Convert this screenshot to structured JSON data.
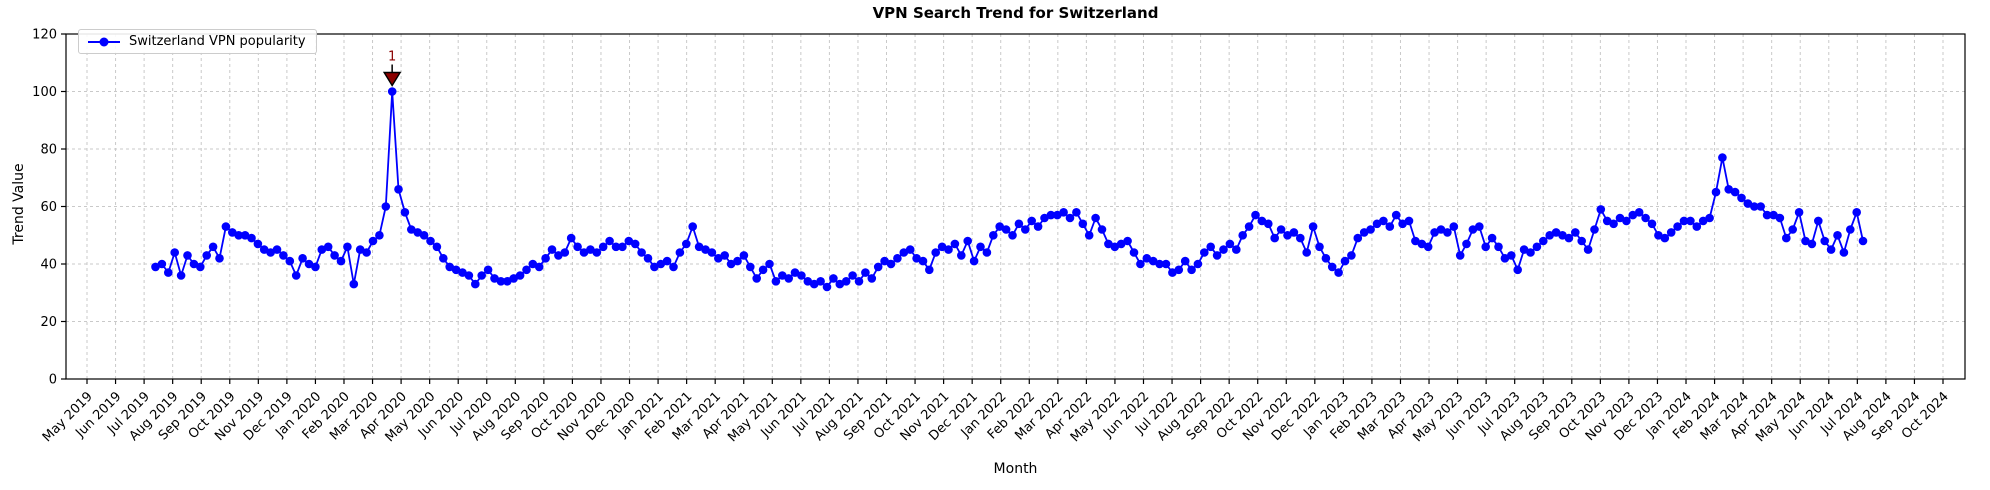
{
  "chart_data": {
    "type": "line",
    "title": "VPN Search Trend for Switzerland",
    "xlabel": "Month",
    "ylabel": "Trend Value",
    "ylim": [
      0,
      120
    ],
    "yticks": [
      0,
      20,
      40,
      60,
      80,
      100,
      120
    ],
    "grid": true,
    "legend_position": "upper left",
    "x_tick_labels": [
      "May 2019",
      "Jun 2019",
      "Jul 2019",
      "Aug 2019",
      "Sep 2019",
      "Oct 2019",
      "Nov 2019",
      "Dec 2019",
      "Jan 2020",
      "Feb 2020",
      "Mar 2020",
      "Apr 2020",
      "May 2020",
      "Jun 2020",
      "Jul 2020",
      "Aug 2020",
      "Sep 2020",
      "Oct 2020",
      "Nov 2020",
      "Dec 2020",
      "Jan 2021",
      "Feb 2021",
      "Mar 2021",
      "Apr 2021",
      "May 2021",
      "Jun 2021",
      "Jul 2021",
      "Aug 2021",
      "Sep 2021",
      "Oct 2021",
      "Nov 2021",
      "Dec 2021",
      "Jan 2022",
      "Feb 2022",
      "Mar 2022",
      "Apr 2022",
      "May 2022",
      "Jun 2022",
      "Jul 2022",
      "Aug 2022",
      "Sep 2022",
      "Oct 2022",
      "Nov 2022",
      "Dec 2022",
      "Jan 2023",
      "Feb 2023",
      "Mar 2023",
      "Apr 2023",
      "May 2023",
      "Jun 2023",
      "Jul 2023",
      "Aug 2023",
      "Sep 2023",
      "Oct 2023",
      "Nov 2023",
      "Dec 2023",
      "Jan 2024",
      "Feb 2024",
      "Mar 2024",
      "Apr 2024",
      "May 2024",
      "Jun 2024",
      "Jul 2024",
      "Aug 2024",
      "Sep 2024",
      "Oct 2024"
    ],
    "data_starts_at_month_index": 2.4,
    "data_ends_at_month_index": 62.2,
    "series": [
      {
        "name": "Switzerland VPN popularity",
        "color": "#0000ff",
        "marker": "circle",
        "cadence": "weekly",
        "values": [
          39,
          40,
          37,
          44,
          36,
          43,
          40,
          39,
          43,
          46,
          42,
          53,
          51,
          50,
          50,
          49,
          47,
          45,
          44,
          45,
          43,
          41,
          36,
          42,
          40,
          39,
          45,
          46,
          43,
          41,
          46,
          33,
          45,
          44,
          48,
          50,
          60,
          100,
          66,
          58,
          52,
          51,
          50,
          48,
          46,
          42,
          39,
          38,
          37,
          36,
          33,
          36,
          38,
          35,
          34,
          34,
          35,
          36,
          38,
          40,
          39,
          42,
          45,
          43,
          44,
          49,
          46,
          44,
          45,
          44,
          46,
          48,
          46,
          46,
          48,
          47,
          44,
          42,
          39,
          40,
          41,
          39,
          44,
          47,
          53,
          46,
          45,
          44,
          42,
          43,
          40,
          41,
          43,
          39,
          35,
          38,
          40,
          34,
          36,
          35,
          37,
          36,
          34,
          33,
          34,
          32,
          35,
          33,
          34,
          36,
          34,
          37,
          35,
          39,
          41,
          40,
          42,
          44,
          45,
          42,
          41,
          38,
          44,
          46,
          45,
          47,
          43,
          48,
          41,
          46,
          44,
          50,
          53,
          52,
          50,
          54,
          52,
          55,
          53,
          56,
          57,
          57,
          58,
          56,
          58,
          54,
          50,
          56,
          52,
          47,
          46,
          47,
          48,
          44,
          40,
          42,
          41,
          40,
          40,
          37,
          38,
          41,
          38,
          40,
          44,
          46,
          43,
          45,
          47,
          45,
          50,
          53,
          57,
          55,
          54,
          49,
          52,
          50,
          51,
          49,
          44,
          53,
          46,
          42,
          39,
          37,
          41,
          43,
          49,
          51,
          52,
          54,
          55,
          53,
          57,
          54,
          55,
          48,
          47,
          46,
          51,
          52,
          51,
          53,
          43,
          47,
          52,
          53,
          46,
          49,
          46,
          42,
          43,
          38,
          45,
          44,
          46,
          48,
          50,
          51,
          50,
          49,
          51,
          48,
          45,
          52,
          59,
          55,
          54,
          56,
          55,
          57,
          58,
          56,
          54,
          50,
          49,
          51,
          53,
          55,
          55,
          53,
          55,
          56,
          65,
          77,
          66,
          65,
          63,
          61,
          60,
          60,
          57,
          57,
          56,
          49,
          52,
          58,
          48,
          47,
          55,
          48,
          45,
          50,
          44,
          52,
          58,
          48
        ]
      }
    ],
    "annotations": [
      {
        "text": "1",
        "value": 100,
        "point_index": 37,
        "near_x_label": "Mar 2020",
        "marker": "triangle-down",
        "color": "#8b0000"
      }
    ],
    "colors": {
      "line": "#0000ff",
      "annotation": "#8b0000",
      "grid": "#c9c9c9",
      "axis": "#000000",
      "text": "#000000",
      "background": "#ffffff",
      "legend_border": "#cccccc"
    }
  }
}
